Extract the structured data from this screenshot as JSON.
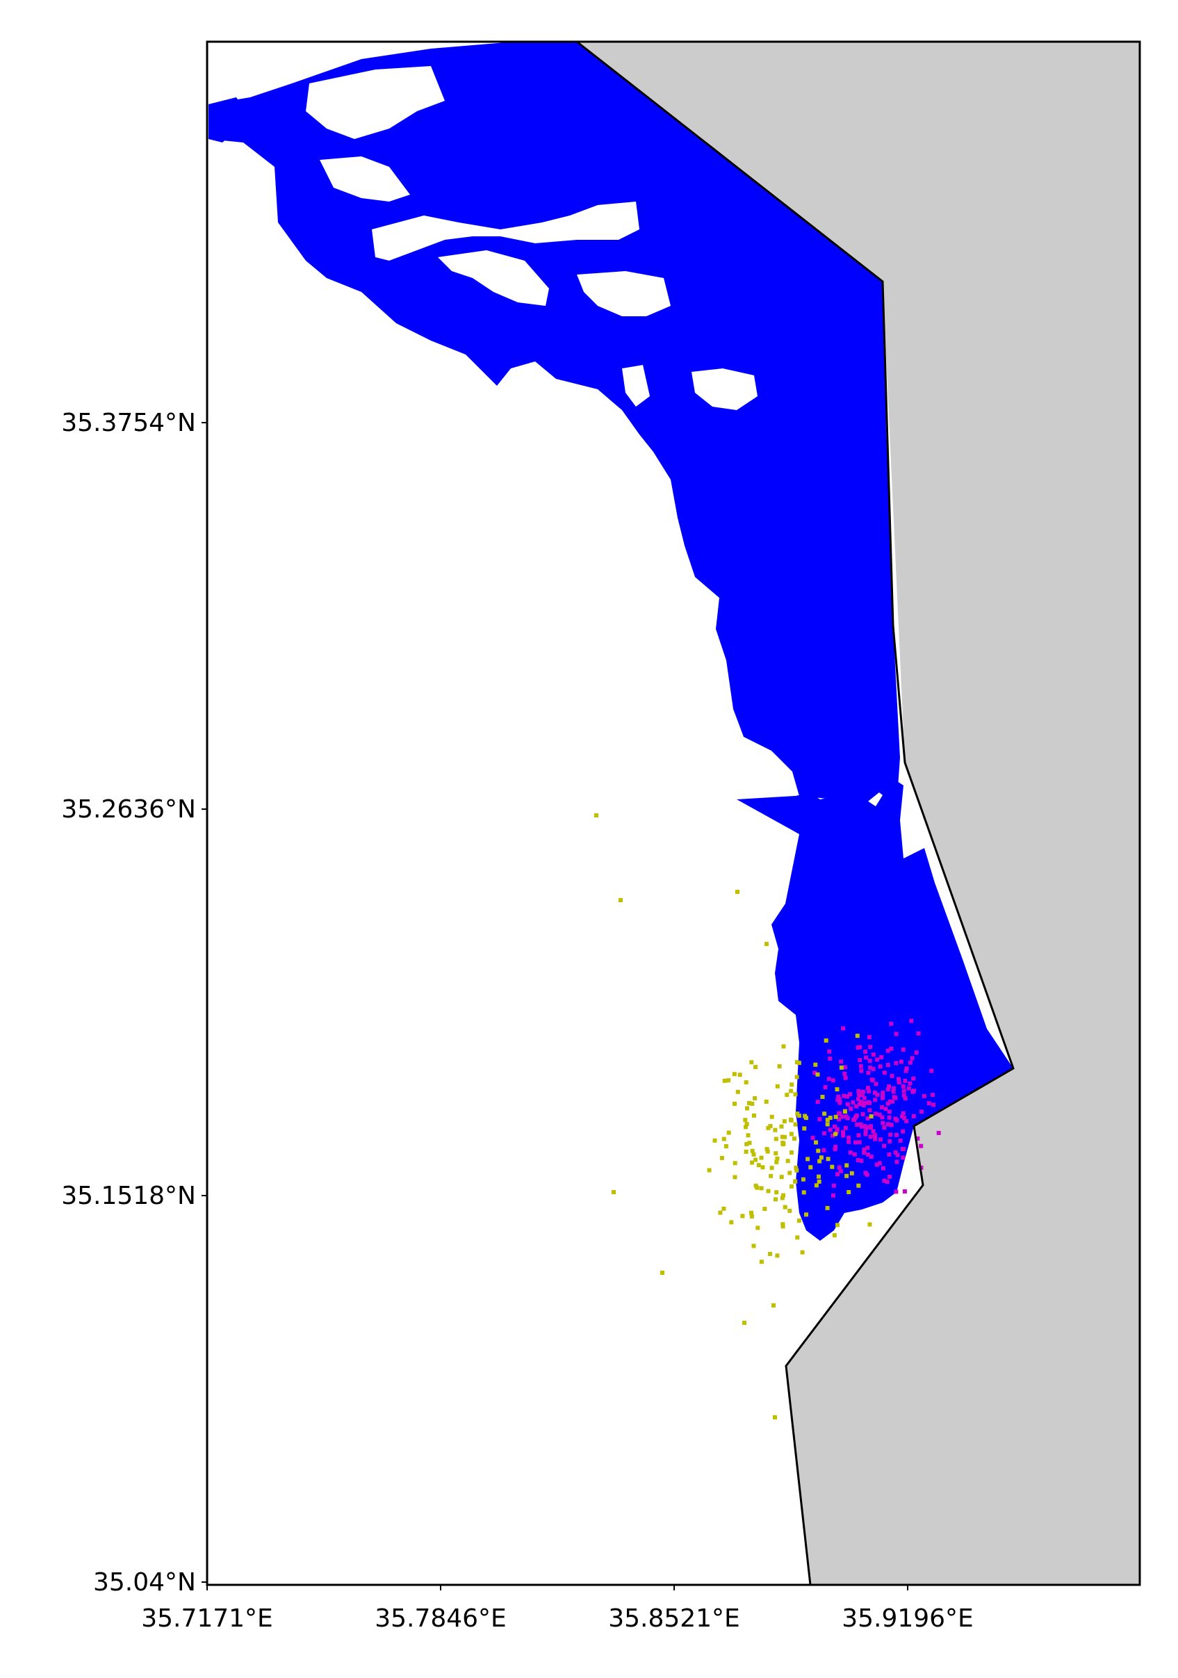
{
  "colors": {
    "background": "#ffffff",
    "land": "#cccccc",
    "coast": "#000000",
    "water_extent": "#0000ff",
    "magenta_points": "#cc00cc",
    "olive_points": "#bfbf00"
  },
  "axes": {
    "lon_range": [
      35.7171,
      35.9853
    ],
    "lat_range": [
      35.04,
      35.4855
    ],
    "lon_ticks": [
      "35.7171°E",
      "35.7846°E",
      "35.8521°E",
      "35.9196°E"
    ],
    "lat_ticks": [
      "35.3754°N",
      "35.2636°N",
      "35.1518°N",
      "35.04°N"
    ]
  },
  "layers": [
    "land",
    "coastline",
    "blue_extent",
    "magenta_points",
    "olive_points"
  ]
}
